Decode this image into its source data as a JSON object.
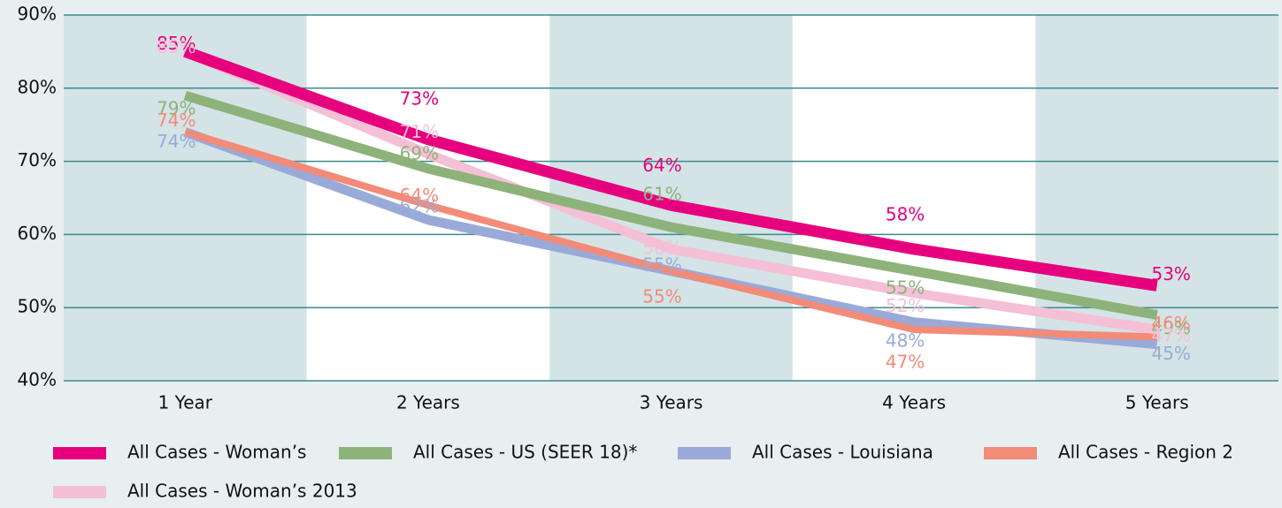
{
  "chart_data": {
    "type": "line",
    "categories": [
      "1 Year",
      "2 Years",
      "3 Years",
      "4 Years",
      "5 Years"
    ],
    "series": [
      {
        "name": "All Cases - Woman’s",
        "color": "#e6007e",
        "values": [
          85,
          73,
          64,
          58,
          53
        ],
        "value_labels": [
          "85%",
          "73%",
          "64%",
          "58%",
          "53%"
        ]
      },
      {
        "name": "All Cases - US (SEER 18)*",
        "color": "#8db37a",
        "values": [
          79,
          69,
          61,
          55,
          49
        ],
        "value_labels": [
          "79%",
          "69%",
          "61%",
          "55%",
          "49%"
        ]
      },
      {
        "name": "All Cases - Louisiana",
        "color": "#9aaad8",
        "values": [
          74,
          62,
          55,
          48,
          45
        ],
        "value_labels": [
          "74%",
          "62%",
          "55%",
          "48%",
          "45%"
        ]
      },
      {
        "name": "All Cases - Region 2",
        "color": "#f28b78",
        "values": [
          74,
          64,
          55,
          47,
          46
        ],
        "value_labels": [
          "74%",
          "64%",
          "55%",
          "47%",
          "46%"
        ]
      },
      {
        "name": "All Cases - Woman’s 2013",
        "color": "#f5bfd6",
        "values": [
          85,
          71,
          58,
          52,
          47
        ],
        "value_labels": [
          "85%",
          "71%",
          "58%",
          "52%",
          "47%"
        ]
      }
    ],
    "ylim": [
      40,
      90
    ],
    "yticks": [
      {
        "value": 40,
        "label": "40%"
      },
      {
        "value": 50,
        "label": "50%"
      },
      {
        "value": 60,
        "label": "60%"
      },
      {
        "value": 70,
        "label": "70%"
      },
      {
        "value": 80,
        "label": "80%"
      },
      {
        "value": 90,
        "label": "90%"
      }
    ],
    "grid": true,
    "legend": "bottom"
  }
}
